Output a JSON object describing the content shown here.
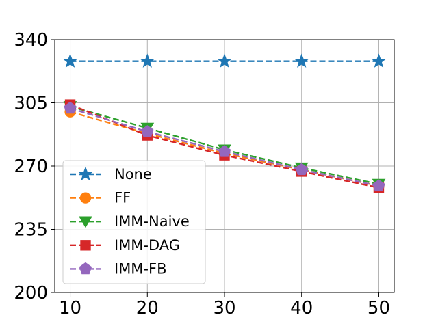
{
  "chart_data": {
    "type": "line",
    "title": "",
    "xlabel": "",
    "ylabel": "",
    "x": [
      10,
      20,
      30,
      40,
      50
    ],
    "x_ticks": [
      "10",
      "20",
      "30",
      "40",
      "50"
    ],
    "y_ticks": [
      "200",
      "235",
      "270",
      "305",
      "340"
    ],
    "xlim": [
      8,
      52
    ],
    "ylim": [
      200,
      340
    ],
    "grid": true,
    "legend_position": "lower-left",
    "series": [
      {
        "name": "None",
        "color": "#1f77b4",
        "marker": "star",
        "values": [
          328,
          328,
          328,
          328,
          328
        ]
      },
      {
        "name": "FF",
        "color": "#ff7f0e",
        "marker": "circle",
        "values": [
          300,
          288,
          277,
          268,
          259
        ]
      },
      {
        "name": "IMM-Naive",
        "color": "#2ca02c",
        "marker": "triangle-down",
        "values": [
          303,
          291,
          279,
          269,
          260
        ]
      },
      {
        "name": "IMM-DAG",
        "color": "#d62728",
        "marker": "square",
        "values": [
          304,
          287,
          276,
          267,
          258
        ]
      },
      {
        "name": "IMM-FB",
        "color": "#9467bd",
        "marker": "pentagon",
        "values": [
          302,
          289,
          278,
          268,
          259
        ]
      }
    ]
  }
}
